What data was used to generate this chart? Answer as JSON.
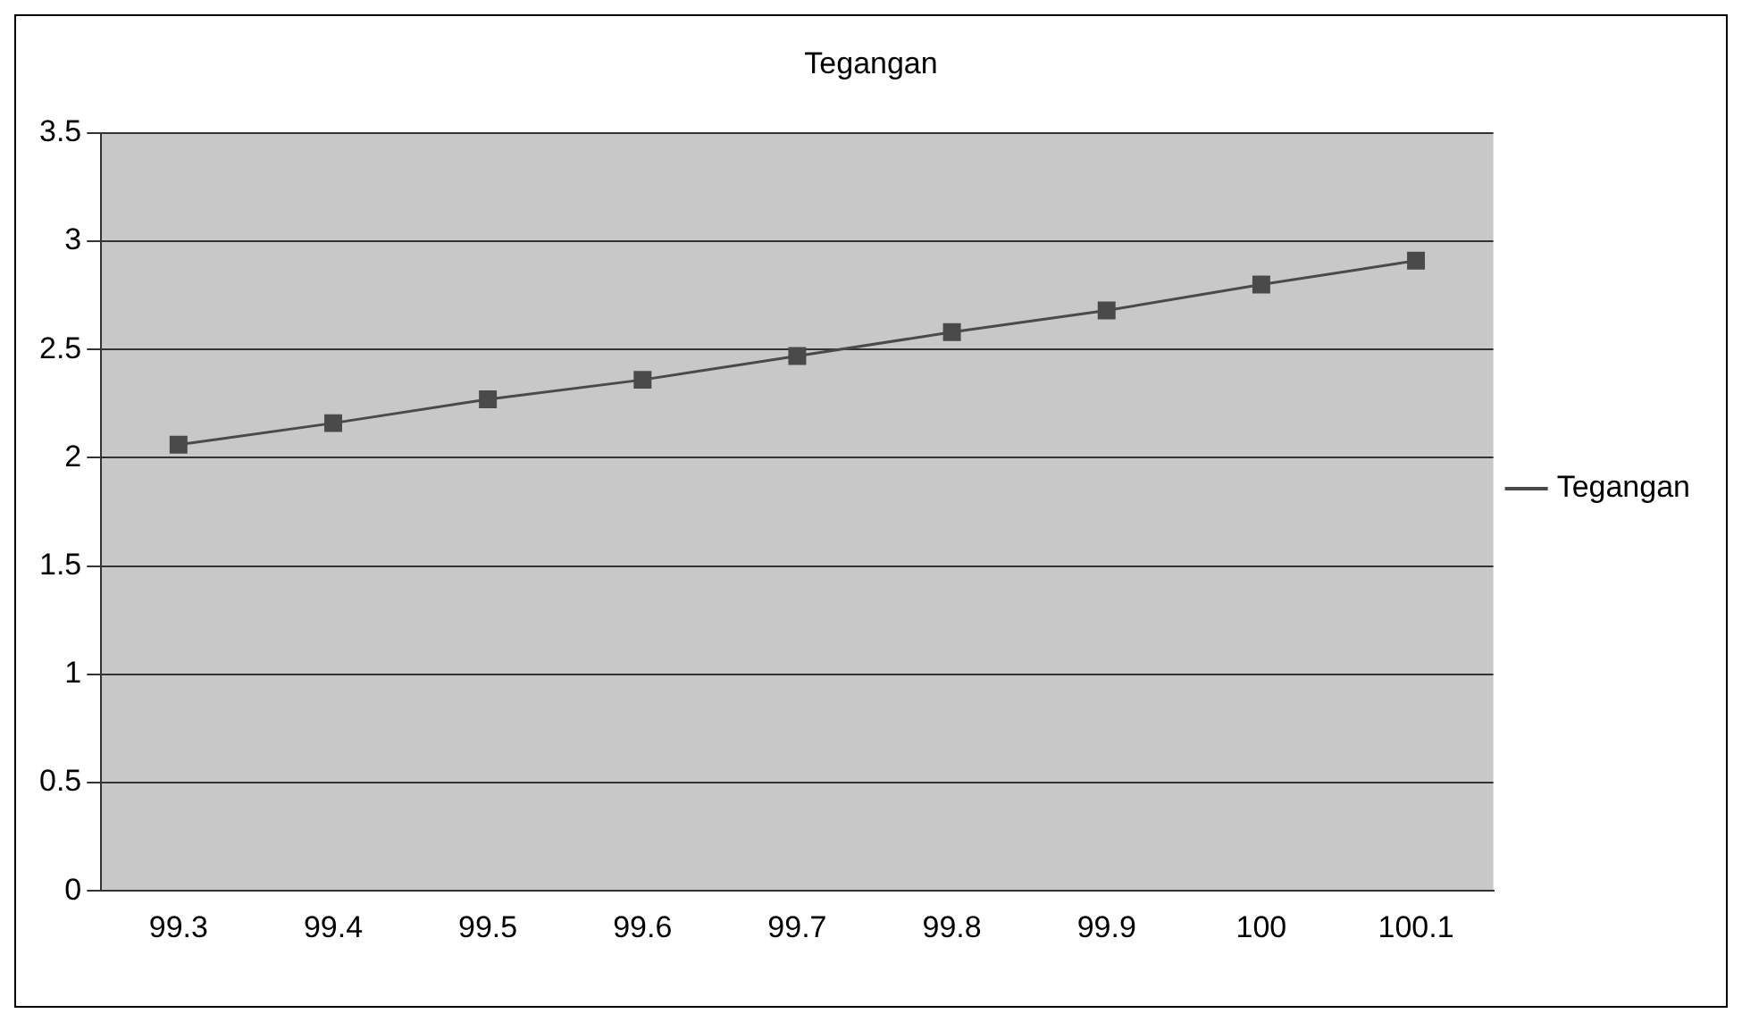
{
  "chart_data": {
    "type": "line",
    "title": "Tegangan",
    "categories": [
      "99.3",
      "99.4",
      "99.5",
      "99.6",
      "99.7",
      "99.8",
      "99.9",
      "100",
      "100.1"
    ],
    "series": [
      {
        "name": "Tegangan",
        "color": "#4a4a4a",
        "values": [
          2.06,
          2.16,
          2.27,
          2.36,
          2.47,
          2.58,
          2.68,
          2.8,
          2.91
        ]
      }
    ],
    "ylim": [
      0,
      3.5
    ],
    "yticks": [
      0,
      0.5,
      1,
      1.5,
      2,
      2.5,
      3,
      3.5
    ],
    "grid": "y",
    "legend": "right",
    "marker": "square",
    "line_style": "solid"
  }
}
